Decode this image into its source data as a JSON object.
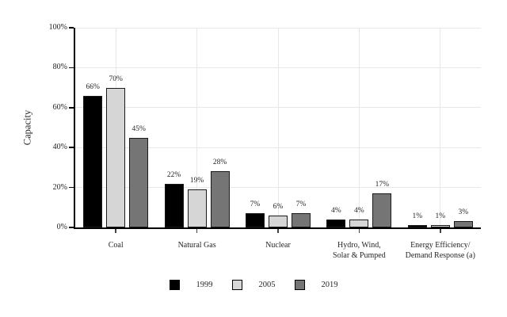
{
  "figure": {
    "background": "#ffffff",
    "text_color": "#262626",
    "grid_color": "#e8e8e8",
    "axis_color": "#000000",
    "bar_edge_color": "#1a1a1a"
  },
  "chart_data": {
    "type": "bar",
    "title": "",
    "xlabel": "",
    "ylabel": "Capacity",
    "ylim": [
      0,
      100
    ],
    "grid": true,
    "legend_position": "bottom",
    "yticks": [
      {
        "value": 0,
        "label": "0%"
      },
      {
        "value": 20,
        "label": "20%"
      },
      {
        "value": 40,
        "label": "40%"
      },
      {
        "value": 60,
        "label": "60%"
      },
      {
        "value": 80,
        "label": "80%"
      },
      {
        "value": 100,
        "label": "100%"
      }
    ],
    "categories": [
      {
        "lines": [
          "Coal"
        ]
      },
      {
        "lines": [
          "Natural Gas"
        ]
      },
      {
        "lines": [
          "Nuclear"
        ]
      },
      {
        "lines": [
          "Hydro, Wind,",
          "Solar & Pumped"
        ]
      },
      {
        "lines": [
          "Energy Efficiency/",
          "Demand Response (a)"
        ]
      }
    ],
    "series": [
      {
        "name": "1999",
        "color": "#000000",
        "values": [
          66,
          22,
          7,
          4,
          1
        ],
        "labels": [
          "66%",
          "22%",
          "7%",
          "4%",
          "1%"
        ]
      },
      {
        "name": "2005",
        "color": "#d6d6d6",
        "values": [
          70,
          19,
          6,
          4,
          1
        ],
        "labels": [
          "70%",
          "19%",
          "6%",
          "4%",
          "1%"
        ]
      },
      {
        "name": "2019",
        "color": "#757575",
        "values": [
          45,
          28,
          7,
          17,
          3
        ],
        "labels": [
          "45%",
          "28%",
          "7%",
          "17%",
          "3%"
        ]
      }
    ]
  }
}
